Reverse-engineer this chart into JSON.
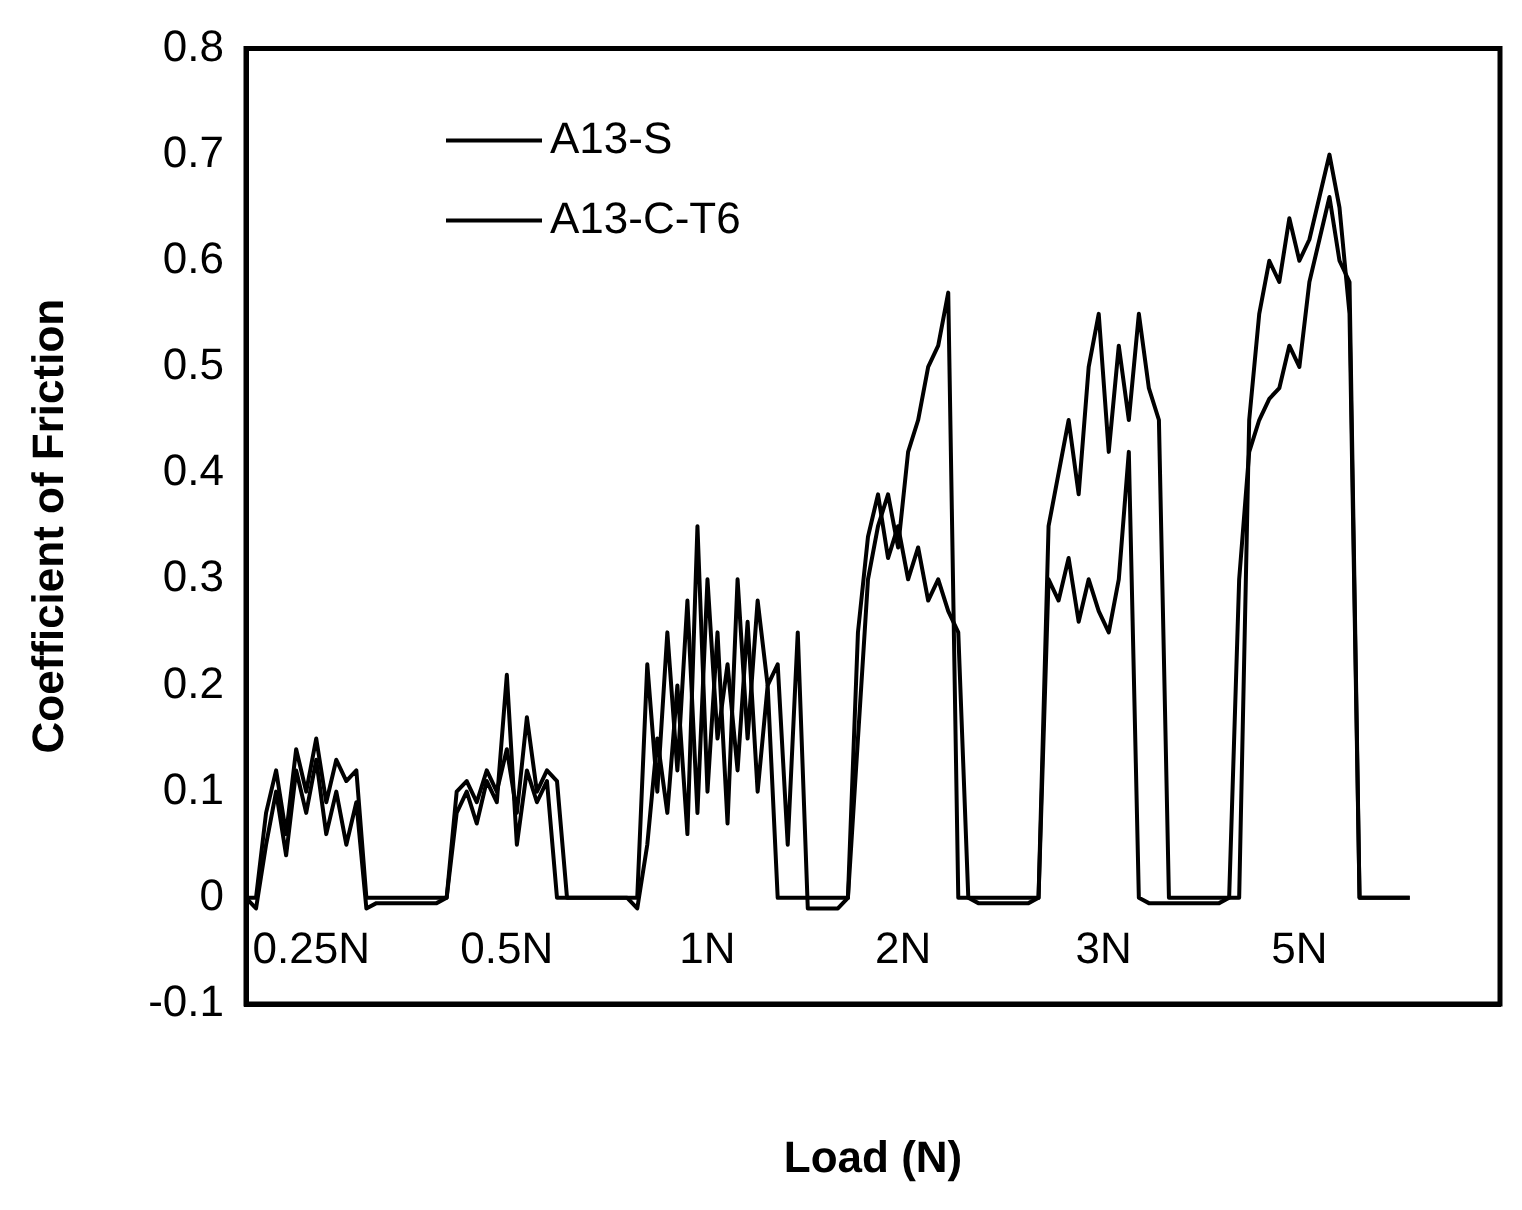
{
  "chart_data": {
    "type": "line",
    "xlabel": "Load (N)",
    "ylabel": "Coefficient of Friction",
    "categories": [
      null,
      null,
      null,
      null,
      null,
      null,
      null,
      null,
      null,
      null,
      null,
      null,
      null,
      null,
      null,
      null,
      null,
      null,
      null,
      null,
      null,
      null,
      null,
      null,
      null,
      null,
      null,
      null,
      null,
      null,
      null,
      null,
      null,
      null,
      null,
      null,
      null,
      null,
      null,
      null,
      null,
      null,
      null,
      null,
      null,
      null,
      null,
      null,
      null,
      null,
      null,
      null,
      null,
      null,
      null,
      null,
      null,
      null,
      null,
      null,
      null,
      null,
      null,
      null,
      null,
      null,
      null,
      null,
      null,
      null,
      null,
      null,
      null,
      null,
      null,
      null,
      null,
      null,
      null,
      null,
      null,
      null,
      null,
      null,
      null,
      null,
      null,
      null,
      null,
      null,
      null,
      null,
      null,
      null,
      null,
      null,
      null,
      null,
      null,
      null,
      null,
      null,
      null,
      null,
      null,
      null,
      null,
      null,
      null,
      null,
      null,
      null,
      null,
      null,
      null,
      null,
      null,
      null,
      null,
      null,
      null,
      null,
      null,
      null,
      null,
      null
    ],
    "series": [
      {
        "name": "A13-S",
        "color": "#000000",
        "values": [
          0,
          0,
          0.08,
          0.12,
          0.06,
          0.14,
          0.1,
          0.15,
          0.09,
          0.13,
          0.11,
          0.12,
          0,
          0,
          0,
          0,
          0,
          0,
          0,
          0,
          0,
          0.1,
          0.11,
          0.09,
          0.12,
          0.1,
          0.14,
          0.08,
          0.17,
          0.1,
          0.12,
          0.11,
          0,
          0,
          0,
          0,
          0,
          0,
          0,
          0,
          0.22,
          0.1,
          0.25,
          0.12,
          0.28,
          0.08,
          0.3,
          0.15,
          0.22,
          0.12,
          0.26,
          0.1,
          0.2,
          0,
          0,
          0,
          0,
          0,
          0,
          0,
          0,
          0.15,
          0.3,
          0.35,
          0.38,
          0.33,
          0.42,
          0.45,
          0.5,
          0.52,
          0.57,
          0,
          0,
          0,
          0,
          0,
          0,
          0,
          0,
          0,
          0.35,
          0.4,
          0.45,
          0.38,
          0.5,
          0.55,
          0.42,
          0.52,
          0.45,
          0.55,
          0.48,
          0.45,
          0,
          0,
          0,
          0,
          0,
          0,
          0,
          0,
          0.45,
          0.55,
          0.6,
          0.58,
          0.64,
          0.6,
          0.62,
          0.66,
          0.7,
          0.65,
          0.55,
          0,
          0,
          0,
          0,
          0,
          0,
          null,
          null,
          null,
          null,
          null,
          null,
          null,
          null,
          null
        ]
      },
      {
        "name": "A13-C-T6",
        "color": "#000000",
        "values": [
          0,
          -0.01,
          0.05,
          0.1,
          0.04,
          0.12,
          0.08,
          0.13,
          0.06,
          0.1,
          0.05,
          0.09,
          -0.01,
          -0.005,
          -0.005,
          -0.005,
          -0.005,
          -0.005,
          -0.005,
          -0.005,
          0,
          0.08,
          0.1,
          0.07,
          0.11,
          0.09,
          0.21,
          0.05,
          0.12,
          0.09,
          0.11,
          0,
          0,
          0,
          0,
          0,
          0,
          0,
          0,
          -0.01,
          0.05,
          0.15,
          0.08,
          0.2,
          0.06,
          0.35,
          0.1,
          0.25,
          0.07,
          0.3,
          0.15,
          0.28,
          0.2,
          0.22,
          0.05,
          0.25,
          -0.01,
          -0.01,
          -0.01,
          -0.01,
          0,
          0.25,
          0.34,
          0.38,
          0.32,
          0.35,
          0.3,
          0.33,
          0.28,
          0.3,
          0.27,
          0.25,
          0,
          -0.005,
          -0.005,
          -0.005,
          -0.005,
          -0.005,
          -0.005,
          0,
          0.3,
          0.28,
          0.32,
          0.26,
          0.3,
          0.27,
          0.25,
          0.3,
          0.42,
          0,
          -0.005,
          -0.005,
          -0.005,
          -0.005,
          -0.005,
          -0.005,
          -0.005,
          -0.005,
          0,
          0.3,
          0.42,
          0.45,
          0.47,
          0.48,
          0.52,
          0.5,
          0.58,
          0.62,
          0.66,
          0.6,
          0.58,
          0,
          0,
          0,
          0,
          0,
          0,
          null,
          null,
          null,
          null,
          null,
          null,
          null,
          null,
          null
        ]
      }
    ],
    "annotations": [
      "0.25N",
      "0.5N",
      "1N",
      "2N",
      "3N",
      "5N"
    ],
    "ylim": [
      -0.1,
      0.8
    ],
    "yticks": [
      -0.1,
      0,
      0.1,
      0.2,
      0.3,
      0.4,
      0.5,
      0.6,
      0.7,
      0.8
    ],
    "legend": "top left",
    "tick_labels": "y",
    "line_style": "solid",
    "marker": "none"
  }
}
